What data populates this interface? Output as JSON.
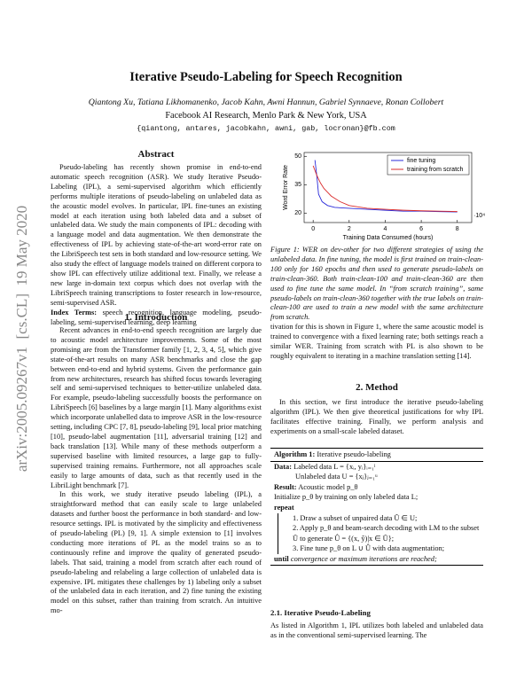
{
  "header": {
    "title": "Iterative Pseudo-Labeling for Speech Recognition",
    "authors": "Qiantong Xu, Tatiana Likhomanenko, Jacob Kahn, Awni Hannun, Gabriel Synnaeve, Ronan Collobert",
    "affiliation": "Facebook AI Research, Menlo Park & New York, USA",
    "email": "{qiantong, antares, jacobkahn, awni, gab, locronan}@fb.com"
  },
  "arxiv_stamp": "arXiv:2005.09267v1  [cs.CL]  19 May 2020",
  "abstract": {
    "heading": "Abstract",
    "text": "Pseudo-labeling has recently shown promise in end-to-end automatic speech recognition (ASR). We study Iterative Pseudo-Labeling (IPL), a semi-supervised algorithm which efficiently performs multiple iterations of pseudo-labeling on unlabeled data as the acoustic model evolves. In particular, IPL fine-tunes an existing model at each iteration using both labeled data and a subset of unlabeled data. We study the main components of IPL: decoding with a language model and data augmentation. We then demonstrate the effectiveness of IPL by achieving state-of-the-art word-error rate on the LibriSpeech test sets in both standard and low-resource setting. We also study the effect of language models trained on different corpora to show IPL can effectively utilize additional text. Finally, we release a new large in-domain text corpus which does not overlap with the LibriSpeech training transcriptions to foster research in low-resource, semi-supervised ASR.",
    "index_terms_label": "Index Terms:",
    "index_terms": "speech recognition, language modeling, pseudo-labeling, semi-supervised learning, deep learning"
  },
  "introduction": {
    "heading": "1. Introduction",
    "paragraphs": [
      "Recent advances in end-to-end speech recognition are largely due to acoustic model architecture improvements. Some of the most promising are from the Transformer family [1, 2, 3, 4, 5], which give state-of-the-art results on many ASR benchmarks and close the gap between end-to-end and hybrid systems. Given the performance gain from new architectures, research has shifted focus towards leveraging self and semi-supervised techniques to better-utilize unlabeled data. For example, pseudo-labeling successfully boosts the performance on LibriSpeech [6] baselines by a large margin [1]. Many algorithms exist which incorporate unlabelled data to improve ASR in the low-resource setting, including CPC [7, 8], pseudo-labeling [9], local prior matching [10], pseudo-label augmentation [11], adversarial training [12] and back translation [13]. While many of these methods outperform a supervised baseline with limited resources, a large gap to fully-supervised training remains. Furthermore, not all approaches scale easily to large amounts of data, such as that recently used in the LibriLight benchmark [7].",
      "In this work, we study iterative pseudo labeling (IPL), a straightforward method that can easily scale to large unlabeled datasets and further boost the performance in both standard- and low-resource settings. IPL is motivated by the simplicity and effectiveness of pseudo-labeling (PL) [9, 1]. A simple extension to [1] involves conducting more iterations of PL as the model trains so as to continuously refine and improve the quality of generated pseudo-labels. That said, training a model from scratch after each round of pseudo-labeling and relabeling a large collection of unlabeled data is expensive. IPL mitigates these challenges by 1) labeling only a subset of the unlabeled data in each iteration, and 2) fine tuning the existing model on this subset, rather than training from scratch. An intuitive mo-"
    ]
  },
  "figure": {
    "chart_data": {
      "type": "line",
      "xlabel": "Training Data Consumed (hours)",
      "ylabel": "Word Error Rate",
      "x_multiplier": "·10⁴",
      "xlim": [
        -0.5,
        8.8
      ],
      "ylim": [
        15,
        52
      ],
      "xticks": [
        0,
        2,
        4,
        6,
        8
      ],
      "yticks": [
        20,
        35,
        50
      ],
      "legend": "upper-right",
      "series": [
        {
          "name": "fine tuning",
          "color": "#2b2bd9",
          "x": [
            0.1,
            0.2,
            0.3,
            0.5,
            0.8,
            1.2,
            2,
            3,
            4,
            5,
            6,
            7,
            8
          ],
          "values": [
            48,
            40,
            30,
            26,
            24,
            23,
            22.5,
            22,
            21.5,
            21,
            21,
            20.8,
            20.6
          ]
        },
        {
          "name": "training from scratch",
          "color": "#d92b2b",
          "x": [
            0,
            0.2,
            0.4,
            0.6,
            0.8,
            1,
            1.5,
            2,
            3,
            4,
            5,
            6,
            7,
            8
          ],
          "values": [
            45,
            40,
            36,
            33,
            31,
            29,
            26,
            24,
            22.5,
            22,
            21.5,
            21.2,
            21,
            20.8
          ]
        }
      ]
    },
    "caption": "Figure 1: WER on dev-other for two different strategies of using the unlabeled data. In fine tuning, the model is first trained on train-clean-100 only for 160 epochs and then used to generate pseudo-labels on train-clean-360. Both train-clean-100 and train-clean-360 are then used to fine tune the same model. In “from scratch training”, same pseudo-labels on train-clean-360 together with the true labels on train-clean-100 are used to train a new model with the same architecture from scratch."
  },
  "continuation": "tivation for this is shown in Figure 1, where the same acoustic model is trained to convergence with a fixed learning rate; both settings reach a similar WER. Training from scratch with PL is also shown to be roughly equivalent to iterating in a machine translation setting [14].",
  "method": {
    "heading": "2. Method",
    "text": "In this section, we first introduce the iterative pseudo-labeling algorithm (IPL). We then give theoretical justifications for why IPL facilitates effective training. Finally, we perform analysis and experiments on a small-scale labeled dataset.",
    "algorithm": {
      "label": "Algorithm 1:",
      "title": "Iterative pseudo-labeling",
      "lines": [
        {
          "keyword": "Data:",
          "text": "Labeled data L = {xᵢ, yᵢ}ᵢ₌₁ˡ"
        },
        {
          "text": "Unlabeled data U = {xⱼ}ⱼ₌₁ᵘ"
        },
        {
          "keyword": "Result:",
          "text": "Acoustic model p_θ"
        },
        {
          "text": "Initialize p_θ by training on only labeled data L;"
        },
        {
          "keyword": "repeat"
        },
        {
          "text": "1. Draw a subset of unpaired data Ũ ∈ U;"
        },
        {
          "text": "2. Apply p_θ and beam-search decoding with LM to the subset Ũ to generate Û = {(x, ŷ)|x ∈ Ũ};"
        },
        {
          "text": "3. Fine tune p_θ on L ∪ Û with data augmentation;"
        },
        {
          "keyword": "until",
          "text": "convergence or maximum iterations are reached;"
        }
      ]
    },
    "subsection": {
      "heading": "2.1. Iterative Pseudo-Labeling",
      "text": "As listed in Algorithm 1, IPL utilizes both labeled and unlabeled data as in the conventional semi-supervised learning. The"
    }
  }
}
